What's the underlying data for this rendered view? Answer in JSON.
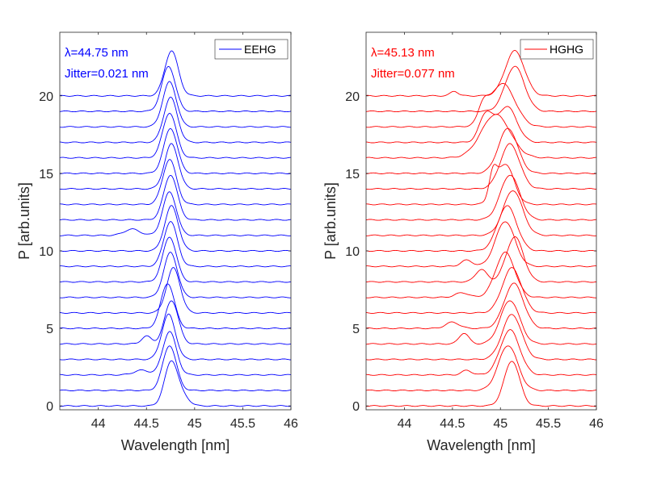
{
  "chart_data": [
    {
      "type": "line",
      "xlabel": "Wavelength [nm]",
      "ylabel": "P [arb.units]",
      "xlim": [
        43.6,
        46
      ],
      "ylim": [
        -0.25,
        24.1
      ],
      "xticks": [
        44,
        44.5,
        45,
        45.5,
        46
      ],
      "xtick_labels": [
        "44",
        "44.5",
        "45",
        "45.5",
        "46"
      ],
      "yticks": [
        0,
        5,
        10,
        15,
        20
      ],
      "ytick_labels": [
        "0",
        "5",
        "10",
        "15",
        "20"
      ],
      "grid": false,
      "legend": {
        "entries": [
          "EEHG"
        ],
        "placement": "top-right"
      },
      "annotations": [
        "λ=44.75 nm",
        "Jitter=0.021 nm"
      ],
      "color": "#0000ff",
      "trace_offset_step": 1,
      "traces": [
        {
          "offset": 0,
          "center": 44.76,
          "sigma": 0.07,
          "amplitude": 2.9,
          "shoulder": {
            "center": 44.9,
            "sigma": 0.06,
            "amplitude": 0.4
          }
        },
        {
          "offset": 1,
          "center": 44.74,
          "sigma": 0.07,
          "amplitude": 2.9
        },
        {
          "offset": 2,
          "center": 44.74,
          "sigma": 0.07,
          "amplitude": 2.8,
          "shoulder": {
            "center": 44.45,
            "sigma": 0.08,
            "amplitude": 0.3
          }
        },
        {
          "offset": 3,
          "center": 44.73,
          "sigma": 0.07,
          "amplitude": 2.9
        },
        {
          "offset": 4,
          "center": 44.76,
          "sigma": 0.07,
          "amplitude": 2.8,
          "shoulder": {
            "center": 44.5,
            "sigma": 0.05,
            "amplitude": 0.5
          }
        },
        {
          "offset": 5,
          "center": 44.72,
          "sigma": 0.07,
          "amplitude": 2.9
        },
        {
          "offset": 6,
          "center": 44.78,
          "sigma": 0.07,
          "amplitude": 2.9
        },
        {
          "offset": 7,
          "center": 44.75,
          "sigma": 0.07,
          "amplitude": 2.9
        },
        {
          "offset": 8,
          "center": 44.74,
          "sigma": 0.07,
          "amplitude": 2.9
        },
        {
          "offset": 9,
          "center": 44.75,
          "sigma": 0.07,
          "amplitude": 2.9
        },
        {
          "offset": 10,
          "center": 44.76,
          "sigma": 0.07,
          "amplitude": 2.9
        },
        {
          "offset": 11,
          "center": 44.74,
          "sigma": 0.07,
          "amplitude": 2.8,
          "shoulder": {
            "center": 44.35,
            "sigma": 0.08,
            "amplitude": 0.4
          }
        },
        {
          "offset": 12,
          "center": 44.75,
          "sigma": 0.07,
          "amplitude": 2.9
        },
        {
          "offset": 13,
          "center": 44.74,
          "sigma": 0.07,
          "amplitude": 2.9
        },
        {
          "offset": 14,
          "center": 44.76,
          "sigma": 0.07,
          "amplitude": 2.9
        },
        {
          "offset": 15,
          "center": 44.75,
          "sigma": 0.07,
          "amplitude": 2.9
        },
        {
          "offset": 16,
          "center": 44.74,
          "sigma": 0.07,
          "amplitude": 2.9
        },
        {
          "offset": 17,
          "center": 44.75,
          "sigma": 0.07,
          "amplitude": 2.9
        },
        {
          "offset": 18,
          "center": 44.74,
          "sigma": 0.07,
          "amplitude": 2.9
        },
        {
          "offset": 19,
          "center": 44.73,
          "sigma": 0.07,
          "amplitude": 2.9
        },
        {
          "offset": 20,
          "center": 44.76,
          "sigma": 0.07,
          "amplitude": 2.9
        }
      ]
    },
    {
      "type": "line",
      "xlabel": "Wavelength [nm]",
      "ylabel": "P [arb.units]",
      "xlim": [
        43.6,
        46
      ],
      "ylim": [
        -0.25,
        24.1
      ],
      "xticks": [
        44,
        44.5,
        45,
        45.5,
        46
      ],
      "xtick_labels": [
        "44",
        "44.5",
        "45",
        "45.5",
        "46"
      ],
      "yticks": [
        0,
        5,
        10,
        15,
        20
      ],
      "ytick_labels": [
        "0",
        "5",
        "10",
        "15",
        "20"
      ],
      "grid": false,
      "legend": {
        "entries": [
          "HGHG"
        ],
        "placement": "top-right"
      },
      "annotations": [
        "λ=45.13 nm",
        "Jitter=0.077 nm"
      ],
      "color": "#ff0000",
      "trace_offset_step": 1,
      "traces": [
        {
          "offset": 0,
          "center": 45.12,
          "sigma": 0.08,
          "amplitude": 2.9
        },
        {
          "offset": 1,
          "center": 45.08,
          "sigma": 0.1,
          "amplitude": 2.9
        },
        {
          "offset": 2,
          "center": 45.1,
          "sigma": 0.1,
          "amplitude": 2.9,
          "shoulder": {
            "center": 44.65,
            "sigma": 0.05,
            "amplitude": 0.3
          }
        },
        {
          "offset": 3,
          "center": 45.12,
          "sigma": 0.1,
          "amplitude": 2.9
        },
        {
          "offset": 4,
          "center": 45.1,
          "sigma": 0.1,
          "amplitude": 2.8,
          "shoulder": {
            "center": 44.62,
            "sigma": 0.05,
            "amplitude": 0.7
          }
        },
        {
          "offset": 5,
          "center": 45.14,
          "sigma": 0.1,
          "amplitude": 2.9,
          "shoulder": {
            "center": 44.5,
            "sigma": 0.07,
            "amplitude": 0.4
          }
        },
        {
          "offset": 6,
          "center": 45.12,
          "sigma": 0.1,
          "amplitude": 2.9
        },
        {
          "offset": 7,
          "center": 45.05,
          "sigma": 0.1,
          "amplitude": 2.9,
          "shoulder": {
            "center": 44.6,
            "sigma": 0.07,
            "amplitude": 0.3
          }
        },
        {
          "offset": 8,
          "center": 45.15,
          "sigma": 0.09,
          "amplitude": 2.9,
          "shoulder": {
            "center": 44.8,
            "sigma": 0.06,
            "amplitude": 0.8
          }
        },
        {
          "offset": 9,
          "center": 45.05,
          "sigma": 0.1,
          "amplitude": 2.9,
          "shoulder": {
            "center": 44.65,
            "sigma": 0.06,
            "amplitude": 0.4
          }
        },
        {
          "offset": 10,
          "center": 45.07,
          "sigma": 0.1,
          "amplitude": 2.9
        },
        {
          "offset": 11,
          "center": 45.13,
          "sigma": 0.1,
          "amplitude": 2.9
        },
        {
          "offset": 12,
          "center": 45.1,
          "sigma": 0.1,
          "amplitude": 2.9
        },
        {
          "offset": 13,
          "center": 45.05,
          "sigma": 0.09,
          "amplitude": 2.6,
          "shoulder": {
            "center": 44.92,
            "sigma": 0.04,
            "amplitude": 1.5
          }
        },
        {
          "offset": 14,
          "center": 45.1,
          "sigma": 0.1,
          "amplitude": 2.9
        },
        {
          "offset": 15,
          "center": 45.08,
          "sigma": 0.1,
          "amplitude": 2.9
        },
        {
          "offset": 16,
          "center": 44.95,
          "sigma": 0.15,
          "amplitude": 2.8
        },
        {
          "offset": 17,
          "center": 45.07,
          "sigma": 0.1,
          "amplitude": 2.3,
          "shoulder": {
            "center": 44.85,
            "sigma": 0.07,
            "amplitude": 1.8
          }
        },
        {
          "offset": 18,
          "center": 45.02,
          "sigma": 0.13,
          "amplitude": 2.8,
          "shoulder": {
            "center": 44.82,
            "sigma": 0.05,
            "amplitude": 1.0
          }
        },
        {
          "offset": 19,
          "center": 45.15,
          "sigma": 0.1,
          "amplitude": 2.9
        },
        {
          "offset": 20,
          "center": 45.15,
          "sigma": 0.1,
          "amplitude": 2.9,
          "shoulder": {
            "center": 44.52,
            "sigma": 0.04,
            "amplitude": 0.3
          }
        }
      ]
    }
  ]
}
